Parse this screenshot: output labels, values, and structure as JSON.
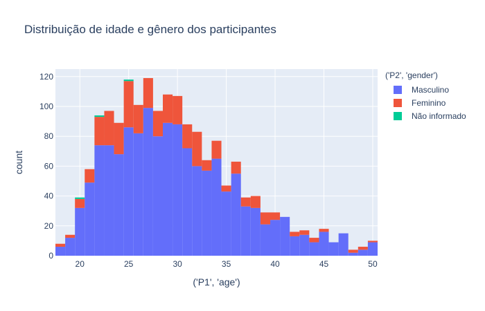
{
  "chart_data": {
    "type": "bar",
    "stacked": true,
    "title": "Distribuição de idade e gênero dos participantes",
    "xlabel": "('P1', 'age')",
    "ylabel": "count",
    "xlim": [
      17.5,
      50.5
    ],
    "ylim": [
      0,
      125
    ],
    "x_ticks": [
      20,
      25,
      30,
      35,
      40,
      45,
      50
    ],
    "y_ticks": [
      0,
      20,
      40,
      60,
      80,
      100,
      120
    ],
    "grid": true,
    "legend_title": "('P2', 'gender')",
    "legend_position": "right",
    "x": [
      18,
      19,
      20,
      21,
      22,
      23,
      24,
      25,
      26,
      27,
      28,
      29,
      30,
      31,
      32,
      33,
      34,
      35,
      36,
      37,
      38,
      39,
      40,
      41,
      42,
      43,
      44,
      45,
      46,
      47,
      48,
      49,
      50
    ],
    "series": [
      {
        "name": "Masculino",
        "color": "#636efa",
        "values": [
          6,
          12,
          32,
          49,
          74,
          74,
          68,
          86,
          82,
          99,
          80,
          89,
          88,
          72,
          60,
          57,
          65,
          43,
          55,
          33,
          32,
          21,
          24,
          26,
          13,
          14,
          9,
          16,
          9,
          15,
          2,
          4,
          9
        ]
      },
      {
        "name": "Feminino",
        "color": "#ef553b",
        "values": [
          2,
          2,
          6,
          9,
          19,
          23,
          21,
          31,
          19,
          20,
          17,
          19,
          19,
          16,
          23,
          7,
          12,
          4,
          8,
          6,
          8,
          8,
          5,
          0,
          3,
          3,
          3,
          2,
          0,
          0,
          2,
          2,
          1
        ]
      },
      {
        "name": "Não informado",
        "color": "#00cc96",
        "values": [
          0,
          0,
          1,
          0,
          1,
          0,
          0,
          1,
          0,
          0,
          0,
          0,
          0,
          0,
          0,
          0,
          0,
          0,
          0,
          0,
          0,
          0,
          0,
          0,
          0,
          0,
          0,
          0,
          0,
          0,
          0,
          0,
          0
        ]
      }
    ]
  }
}
